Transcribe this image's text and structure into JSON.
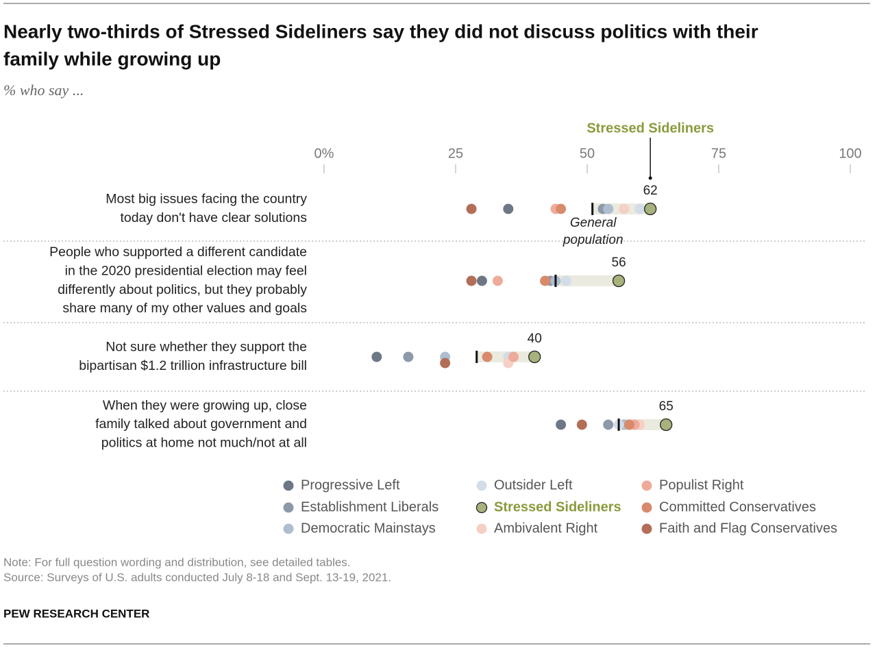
{
  "chart_data": {
    "type": "dot",
    "title": [
      "Nearly two-thirds of Stressed Sideliners say they did not discuss politics with their",
      "family while growing up"
    ],
    "subtitle": "% who say ...",
    "categories": [
      [
        "Most big issues facing the country",
        "today don't have clear solutions"
      ],
      [
        "People who supported a different candidate",
        "in the 2020 presidential election may feel",
        "differently about politics, but they probably",
        "share many of my other values and goals"
      ],
      [
        "Not sure whether they support the",
        "bipartisan $1.2 trillion infrastructure bill"
      ],
      [
        "When they were growing up, close",
        "family talked about government and",
        "politics at home not much/not at all"
      ]
    ],
    "xlim": [
      0,
      100
    ],
    "xticks": [
      {
        "value": 0,
        "label": "0%"
      },
      25,
      50,
      75,
      100
    ],
    "highlight": 4,
    "reference": {
      "label": [
        "General",
        "population"
      ],
      "values": [
        51,
        44,
        29,
        56
      ],
      "band_color": "#ebeadf"
    },
    "series": [
      {
        "name": "Progressive Left",
        "color": "#6e7785",
        "values": [
          35,
          30,
          10,
          45
        ]
      },
      {
        "name": "Establishment Liberals",
        "color": "#8c99a9",
        "values": [
          53,
          43,
          16,
          54
        ]
      },
      {
        "name": "Democratic Mainstays",
        "color": "#aebdd0",
        "values": [
          54,
          44,
          23,
          57
        ]
      },
      {
        "name": "Outsider Left",
        "color": "#d3dde8",
        "values": [
          60,
          46,
          35,
          56
        ]
      },
      {
        "name": "Stressed Sideliners",
        "color": "#a7b27c",
        "values": [
          62,
          56,
          40,
          65
        ]
      },
      {
        "name": "Ambivalent Right",
        "color": "#f5d0c5",
        "values": [
          57,
          56,
          35,
          60
        ]
      },
      {
        "name": "Populist Right",
        "color": "#eeab9a",
        "values": [
          44,
          33,
          36,
          59
        ]
      },
      {
        "name": "Committed Conservatives",
        "color": "#d88a6c",
        "values": [
          45,
          42,
          31,
          58
        ]
      },
      {
        "name": "Faith and Flag Conservatives",
        "color": "#b36e57",
        "values": [
          28,
          28,
          23,
          49
        ]
      }
    ],
    "notes": [
      "Note: For full question wording and distribution, see detailed tables.",
      "Source: Surveys of U.S. adults conducted July 8-18 and Sept. 13-19, 2021."
    ],
    "source": "PEW RESEARCH CENTER"
  }
}
